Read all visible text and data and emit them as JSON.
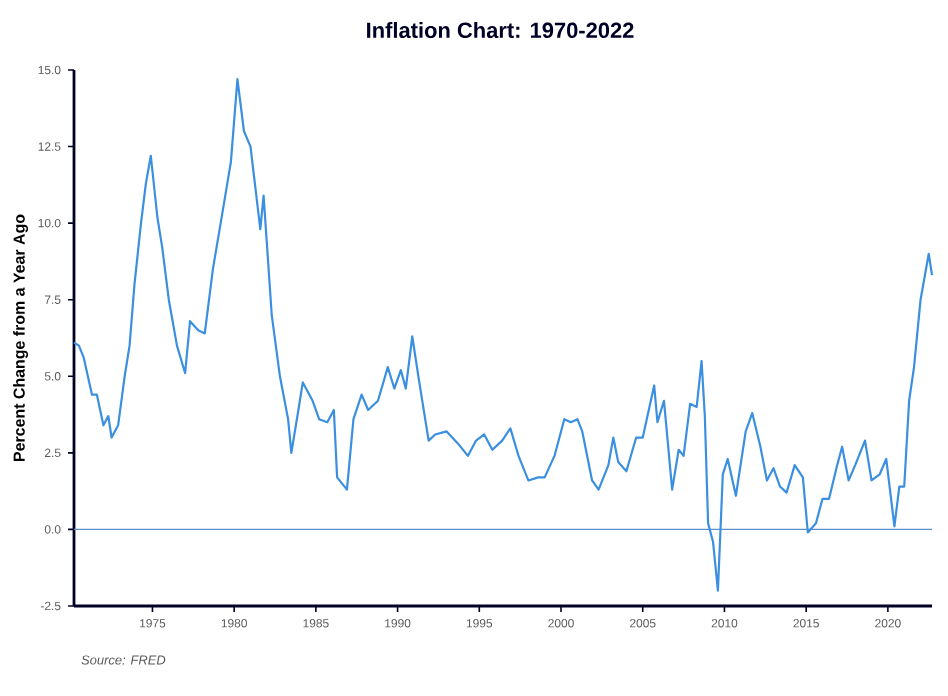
{
  "chart_data": {
    "type": "line",
    "title": "Inflation Chart: 1970-2022",
    "ylabel": "Percent Change from a Year Ago",
    "annotations": [
      "Source: FRED"
    ],
    "x": [
      1970.2,
      1970.5,
      1970.8,
      1971.3,
      1971.6,
      1972.0,
      1972.3,
      1972.5,
      1972.9,
      1973.3,
      1973.6,
      1973.9,
      1974.3,
      1974.6,
      1974.9,
      1975.3,
      1975.6,
      1976.0,
      1976.5,
      1977.0,
      1977.3,
      1977.8,
      1978.2,
      1978.7,
      1979.3,
      1979.8,
      1980.2,
      1980.6,
      1981.0,
      1981.6,
      1981.8,
      1982.3,
      1982.8,
      1983.3,
      1983.5,
      1983.9,
      1984.2,
      1984.8,
      1985.2,
      1985.7,
      1986.1,
      1986.3,
      1986.9,
      1987.3,
      1987.8,
      1988.2,
      1988.8,
      1989.4,
      1989.8,
      1990.2,
      1990.5,
      1990.9,
      1991.3,
      1991.9,
      1992.3,
      1993.0,
      1993.7,
      1994.3,
      1994.8,
      1995.3,
      1995.8,
      1996.4,
      1996.9,
      1997.4,
      1998.0,
      1998.6,
      1999.0,
      1999.6,
      2000.2,
      2000.6,
      2001.0,
      2001.3,
      2001.9,
      2002.3,
      2002.9,
      2003.2,
      2003.5,
      2004.0,
      2004.6,
      2005.0,
      2005.7,
      2005.9,
      2006.3,
      2006.8,
      2007.2,
      2007.5,
      2007.9,
      2008.3,
      2008.6,
      2008.8,
      2009.0,
      2009.3,
      2009.6,
      2009.9,
      2010.2,
      2010.7,
      2011.3,
      2011.7,
      2012.2,
      2012.6,
      2013.0,
      2013.4,
      2013.8,
      2014.3,
      2014.8,
      2015.1,
      2015.6,
      2016.0,
      2016.4,
      2016.9,
      2017.2,
      2017.6,
      2018.0,
      2018.6,
      2019.0,
      2019.5,
      2019.9,
      2020.4,
      2020.7,
      2021.0,
      2021.3,
      2021.6,
      2022.0,
      2022.5,
      2022.7
    ],
    "series": [
      {
        "color": "#3b8fe0",
        "values": [
          6.1,
          6.0,
          5.6,
          4.4,
          4.4,
          3.4,
          3.7,
          3.0,
          3.4,
          5.0,
          6.0,
          8.0,
          10.0,
          11.3,
          12.2,
          10.2,
          9.2,
          7.5,
          6.0,
          5.1,
          6.8,
          6.5,
          6.4,
          8.5,
          10.4,
          12.0,
          14.7,
          13.0,
          12.5,
          9.8,
          10.9,
          7.0,
          5.0,
          3.6,
          2.5,
          3.8,
          4.8,
          4.2,
          3.6,
          3.5,
          3.9,
          1.7,
          1.3,
          3.6,
          4.4,
          3.9,
          4.2,
          5.3,
          4.6,
          5.2,
          4.6,
          6.3,
          4.9,
          2.9,
          3.1,
          3.2,
          2.8,
          2.4,
          2.9,
          3.1,
          2.6,
          2.9,
          3.3,
          2.4,
          1.6,
          1.7,
          1.7,
          2.4,
          3.6,
          3.5,
          3.6,
          3.2,
          1.6,
          1.3,
          2.1,
          3.0,
          2.2,
          1.9,
          3.0,
          3.0,
          4.7,
          3.5,
          4.2,
          1.3,
          2.6,
          2.4,
          4.1,
          4.0,
          5.5,
          3.7,
          0.2,
          -0.4,
          -2.0,
          1.8,
          2.3,
          1.1,
          3.2,
          3.8,
          2.7,
          1.6,
          2.0,
          1.4,
          1.2,
          2.1,
          1.7,
          -0.1,
          0.2,
          1.0,
          1.0,
          2.1,
          2.7,
          1.6,
          2.1,
          2.9,
          1.6,
          1.8,
          2.3,
          0.1,
          1.4,
          1.4,
          4.2,
          5.3,
          7.5,
          9.0,
          8.3
        ]
      }
    ],
    "xlim": [
      1970.2,
      2022.7
    ],
    "ylim": [
      -2.5,
      15.0
    ],
    "xticks": [
      1975,
      1980,
      1985,
      1990,
      1995,
      2000,
      2005,
      2010,
      2015,
      2020
    ],
    "yticks": [
      {
        "value": -2.5,
        "label": "-2.5"
      },
      {
        "value": 0,
        "label": "0.0"
      },
      {
        "value": 2.5,
        "label": "2.5"
      },
      {
        "value": 5,
        "label": "5.0"
      },
      {
        "value": 7.5,
        "label": "7.5"
      },
      {
        "value": 10,
        "label": "10.0"
      },
      {
        "value": 12.5,
        "label": "12.5"
      },
      {
        "value": 15,
        "label": "15.0"
      }
    ],
    "ref_lines": [
      {
        "axis": "y",
        "value": 0,
        "color": "#5b8fc7"
      }
    ]
  }
}
